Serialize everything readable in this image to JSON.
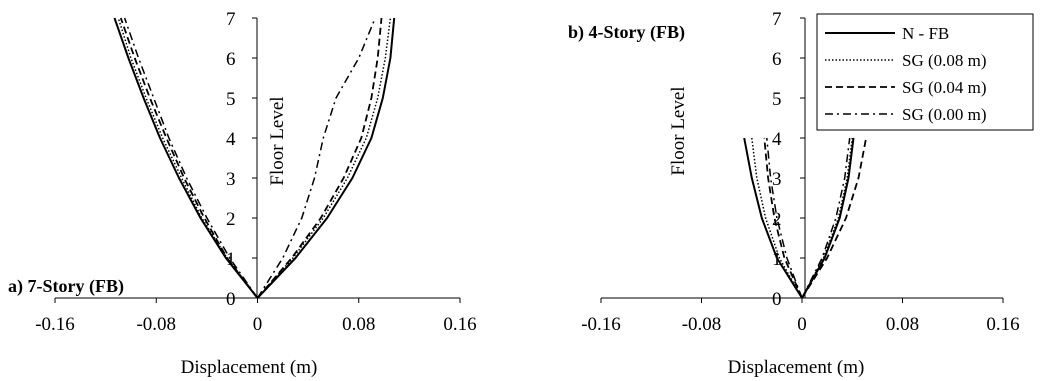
{
  "chart_data": [
    {
      "type": "line",
      "title": "a) 7-Story (FB)",
      "xlabel": "Displacement (m)",
      "ylabel": "Floor Level",
      "xlim": [
        -0.16,
        0.16
      ],
      "ylim": [
        0,
        7
      ],
      "xticks": [
        "-0.16",
        "-0.08",
        "0",
        "0.08",
        "0.16"
      ],
      "yticks": [
        "0",
        "1",
        "2",
        "3",
        "4",
        "5",
        "6",
        "7"
      ],
      "series": [
        {
          "name": "N - FB",
          "dash": "solid",
          "left": [
            [
              0,
              0
            ],
            [
              -0.025,
              1
            ],
            [
              -0.045,
              2
            ],
            [
              -0.062,
              3
            ],
            [
              -0.077,
              4
            ],
            [
              -0.09,
              5
            ],
            [
              -0.102,
              6
            ],
            [
              -0.113,
              7
            ]
          ],
          "right": [
            [
              0,
              0
            ],
            [
              0.03,
              1
            ],
            [
              0.055,
              2
            ],
            [
              0.075,
              3
            ],
            [
              0.09,
              4
            ],
            [
              0.099,
              5
            ],
            [
              0.105,
              6
            ],
            [
              0.108,
              7
            ]
          ]
        },
        {
          "name": "SG (0.08 m)",
          "dash": "dotted",
          "left": [
            [
              0,
              0
            ],
            [
              -0.024,
              1
            ],
            [
              -0.044,
              2
            ],
            [
              -0.06,
              3
            ],
            [
              -0.075,
              4
            ],
            [
              -0.088,
              5
            ],
            [
              -0.1,
              6
            ],
            [
              -0.11,
              7
            ]
          ],
          "right": [
            [
              0,
              0
            ],
            [
              0.028,
              1
            ],
            [
              0.052,
              2
            ],
            [
              0.071,
              3
            ],
            [
              0.086,
              4
            ],
            [
              0.095,
              5
            ],
            [
              0.101,
              6
            ],
            [
              0.105,
              7
            ]
          ]
        },
        {
          "name": "SG (0.04 m)",
          "dash": "dashed",
          "left": [
            [
              0,
              0
            ],
            [
              -0.024,
              1
            ],
            [
              -0.042,
              2
            ],
            [
              -0.058,
              3
            ],
            [
              -0.072,
              4
            ],
            [
              -0.085,
              5
            ],
            [
              -0.097,
              6
            ],
            [
              -0.108,
              7
            ]
          ],
          "right": [
            [
              0,
              0
            ],
            [
              0.027,
              1
            ],
            [
              0.05,
              2
            ],
            [
              0.068,
              3
            ],
            [
              0.082,
              4
            ],
            [
              0.09,
              5
            ],
            [
              0.095,
              6
            ],
            [
              0.098,
              7
            ]
          ]
        },
        {
          "name": "SG (0.00 m)",
          "dash": "dashdot",
          "left": [
            [
              0,
              0
            ],
            [
              -0.022,
              1
            ],
            [
              -0.04,
              2
            ],
            [
              -0.056,
              3
            ],
            [
              -0.07,
              4
            ],
            [
              -0.082,
              5
            ],
            [
              -0.094,
              6
            ],
            [
              -0.105,
              7
            ]
          ],
          "right": [
            [
              0,
              0
            ],
            [
              0.02,
              1
            ],
            [
              0.035,
              2
            ],
            [
              0.045,
              3
            ],
            [
              0.052,
              4
            ],
            [
              0.062,
              5
            ],
            [
              0.08,
              6
            ],
            [
              0.093,
              7
            ]
          ]
        }
      ]
    },
    {
      "type": "line",
      "title": "b) 4-Story (FB)",
      "xlabel": "Displacement (m)",
      "ylabel": "Floor Level",
      "xlim": [
        -0.16,
        0.16
      ],
      "ylim": [
        0,
        7
      ],
      "xticks": [
        "-0.16",
        "-0.08",
        "0",
        "0.08",
        "0.16"
      ],
      "yticks": [
        "0",
        "1",
        "2",
        "3",
        "4",
        "5",
        "6",
        "7"
      ],
      "legend": "top-right",
      "series": [
        {
          "name": "N - FB",
          "dash": "solid",
          "left": [
            [
              0,
              0
            ],
            [
              -0.02,
              1
            ],
            [
              -0.032,
              2
            ],
            [
              -0.04,
              3
            ],
            [
              -0.046,
              4
            ]
          ],
          "right": [
            [
              0,
              0
            ],
            [
              0.018,
              1
            ],
            [
              0.03,
              2
            ],
            [
              0.037,
              3
            ],
            [
              0.041,
              4
            ]
          ]
        },
        {
          "name": "SG (0.08 m)",
          "dash": "dotted",
          "left": [
            [
              0,
              0
            ],
            [
              -0.018,
              1
            ],
            [
              -0.029,
              2
            ],
            [
              -0.036,
              3
            ],
            [
              -0.04,
              4
            ]
          ],
          "right": [
            [
              0,
              0
            ],
            [
              0.017,
              1
            ],
            [
              0.029,
              2
            ],
            [
              0.036,
              3
            ],
            [
              0.04,
              4
            ]
          ]
        },
        {
          "name": "SG (0.04 m)",
          "dash": "dashed",
          "left": [
            [
              0,
              0
            ],
            [
              -0.014,
              1
            ],
            [
              -0.022,
              2
            ],
            [
              -0.027,
              3
            ],
            [
              -0.03,
              4
            ]
          ],
          "right": [
            [
              0,
              0
            ],
            [
              0.02,
              1
            ],
            [
              0.035,
              2
            ],
            [
              0.045,
              3
            ],
            [
              0.051,
              4
            ]
          ]
        },
        {
          "name": "SG (0.00 m)",
          "dash": "dashdot",
          "left": [
            [
              0,
              0
            ],
            [
              -0.012,
              1
            ],
            [
              -0.02,
              2
            ],
            [
              -0.025,
              3
            ],
            [
              -0.028,
              4
            ]
          ],
          "right": [
            [
              0,
              0
            ],
            [
              0.016,
              1
            ],
            [
              0.027,
              2
            ],
            [
              0.034,
              3
            ],
            [
              0.038,
              4
            ]
          ]
        }
      ]
    }
  ]
}
